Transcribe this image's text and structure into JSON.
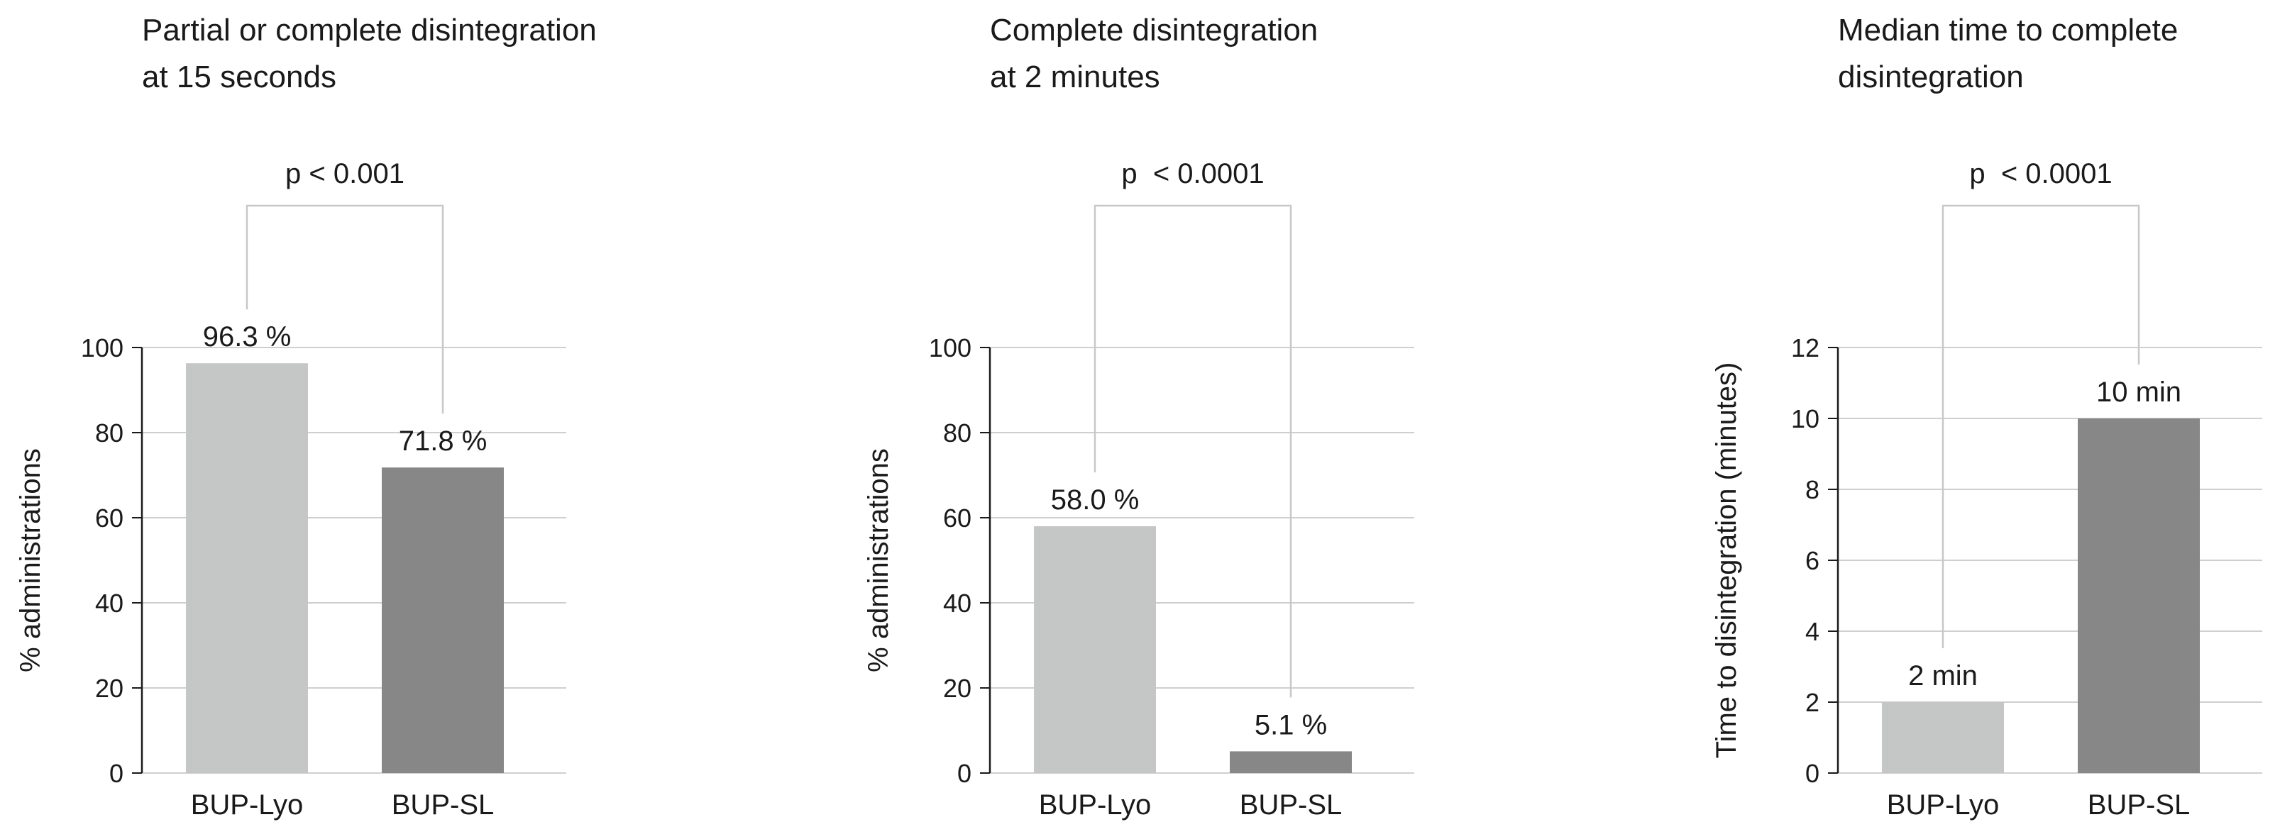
{
  "chart_data": [
    {
      "type": "bar",
      "title": "Partial or complete disintegration\nat 15 seconds",
      "categories": [
        "BUP-Lyo",
        "BUP-SL"
      ],
      "values": [
        96.3,
        71.8
      ],
      "value_labels": [
        "96.3 %",
        "71.8 %"
      ],
      "ylabel": "% administrations",
      "ylim": [
        0,
        100
      ],
      "yticks": [
        "0",
        "20",
        "40",
        "60",
        "80",
        "100"
      ],
      "grid": true,
      "colors": [
        "#c5c7c6",
        "#878787"
      ],
      "significance": "p < 0.001"
    },
    {
      "type": "bar",
      "title": "Complete disintegration\nat 2 minutes",
      "categories": [
        "BUP-Lyo",
        "BUP-SL"
      ],
      "values": [
        58.0,
        5.1
      ],
      "value_labels": [
        "58.0 %",
        "5.1 %"
      ],
      "ylabel": "% administrations",
      "ylim": [
        0,
        100
      ],
      "yticks": [
        "0",
        "20",
        "40",
        "60",
        "80",
        "100"
      ],
      "grid": true,
      "colors": [
        "#c5c7c6",
        "#878787"
      ],
      "significance": "p  < 0.0001"
    },
    {
      "type": "bar",
      "title": "Median time to complete\ndisintegration",
      "categories": [
        "BUP-Lyo",
        "BUP-SL"
      ],
      "values": [
        2,
        10
      ],
      "value_labels": [
        "2 min",
        "10 min"
      ],
      "ylabel": "Time to disintegration (minutes)",
      "ylim": [
        0,
        12
      ],
      "yticks": [
        "0",
        "2",
        "4",
        "6",
        "8",
        "10",
        "12"
      ],
      "grid": true,
      "colors": [
        "#c5c7c6",
        "#878787"
      ],
      "significance": "p  < 0.0001"
    }
  ]
}
